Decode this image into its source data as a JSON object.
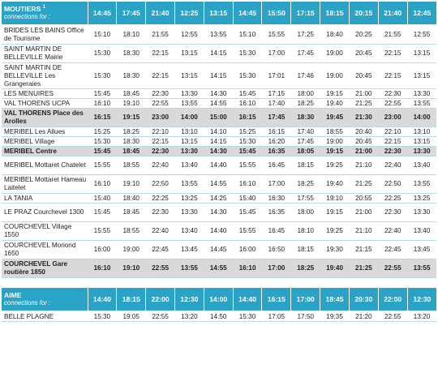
{
  "sections": [
    {
      "origin": "MOUTIERS",
      "origin_note": "1",
      "subtitle": "connections for :",
      "times": [
        "14:45",
        "17:45",
        "21:40",
        "12:25",
        "13:15",
        "14:45",
        "15:50",
        "17:15",
        "18:15",
        "20:15",
        "21:40",
        "12:45"
      ],
      "rows": [
        {
          "stop": "BRIDES LES BAINS Office de Tourisme",
          "h": 2,
          "hl": false,
          "times": [
            "15:10",
            "18:10",
            "21:55",
            "12:55",
            "13:55",
            "15:10",
            "15:55",
            "17:25",
            "18:40",
            "20:25",
            "21:55",
            "12:55"
          ]
        },
        {
          "stop": "SAINT MARTIN DE BELLEVILLE Mairie",
          "h": 2,
          "hl": false,
          "times": [
            "15:30",
            "18:30",
            "22:15",
            "13:15",
            "14:15",
            "15:30",
            "17:00",
            "17:45",
            "19:00",
            "20:45",
            "22:15",
            "13:15"
          ]
        },
        {
          "stop": "SAINT MARTIN DE BELLEVILLE Les Grangeraies",
          "h": 3,
          "hl": false,
          "times": [
            "15:30",
            "18:30",
            "22:15",
            "13:15",
            "14:15",
            "15:30",
            "17:01",
            "17:46",
            "19:00",
            "20:45",
            "22:15",
            "13:15"
          ]
        },
        {
          "stop": "LES MENUIRES",
          "h": 1,
          "hl": false,
          "times": [
            "15:45",
            "18:45",
            "22:30",
            "13:30",
            "14:30",
            "15:45",
            "17:15",
            "18:00",
            "19:15",
            "21:00",
            "22:30",
            "13:30"
          ]
        },
        {
          "stop": "VAL THORENS UCPA",
          "h": 1,
          "hl": false,
          "times": [
            "16:10",
            "19:10",
            "22:55",
            "13:55",
            "14:55",
            "16:10",
            "17:40",
            "18:25",
            "19:40",
            "21:25",
            "22:55",
            "13:55"
          ]
        },
        {
          "stop": "VAL THORENS Place des Arolles",
          "h": 2,
          "hl": true,
          "times": [
            "16:15",
            "19:15",
            "23:00",
            "14:00",
            "15:00",
            "16:15",
            "17:45",
            "18:30",
            "19:45",
            "21:30",
            "23:00",
            "14:00"
          ]
        },
        {
          "stop": "MERIBEL Les Allues",
          "h": 1,
          "hl": false,
          "times": [
            "15:25",
            "18:25",
            "22:10",
            "13:10",
            "14:10",
            "15:25",
            "16:15",
            "17:40",
            "18:55",
            "20:40",
            "22:10",
            "13:10"
          ]
        },
        {
          "stop": "MERIBEL Village",
          "h": 1,
          "hl": false,
          "times": [
            "15:30",
            "18:30",
            "22:15",
            "13:15",
            "14:15",
            "15:30",
            "16:20",
            "17:45",
            "19:00",
            "20:45",
            "22:15",
            "13:15"
          ]
        },
        {
          "stop": "MERIBEL Centre",
          "h": 1,
          "hl": true,
          "times": [
            "15:45",
            "18:45",
            "22:30",
            "13:30",
            "14:30",
            "15:45",
            "16:35",
            "18:05",
            "19:15",
            "21:00",
            "22:30",
            "13:30"
          ]
        },
        {
          "stop": "MERIBEL Mottaret Chatelet",
          "h": 2,
          "hl": false,
          "times": [
            "15:55",
            "18:55",
            "22:40",
            "13:40",
            "14:40",
            "15:55",
            "16:45",
            "18:15",
            "19:25",
            "21:10",
            "22:40",
            "13:40"
          ]
        },
        {
          "stop": "MERIBEL Mottaret Hameau Laitelet",
          "h": 2,
          "hl": false,
          "times": [
            "16:10",
            "19:10",
            "22:50",
            "13:55",
            "14:55",
            "16:10",
            "17:00",
            "18:25",
            "19:40",
            "21:25",
            "22:50",
            "13:55"
          ]
        },
        {
          "stop": "LA TANIA",
          "h": 1,
          "hl": false,
          "times": [
            "15:40",
            "18:40",
            "22:25",
            "13:25",
            "14:25",
            "15:40",
            "16:30",
            "17:55",
            "19:10",
            "20:55",
            "22:25",
            "13:25"
          ]
        },
        {
          "stop": "LE PRAZ Courchevel 1300",
          "h": 2,
          "hl": false,
          "times": [
            "15:45",
            "18:45",
            "22:30",
            "13:30",
            "14:30",
            "15:45",
            "16:35",
            "18:00",
            "19:15",
            "21:00",
            "22:30",
            "13:30"
          ]
        },
        {
          "stop": "COURCHEVEL Village 1550",
          "h": 2,
          "hl": false,
          "times": [
            "15:55",
            "18:55",
            "22:40",
            "13:40",
            "14:40",
            "15:55",
            "16:45",
            "18:10",
            "19:25",
            "21:10",
            "22:40",
            "13:40"
          ]
        },
        {
          "stop": "COURCHEVEL Moriond 1650",
          "h": 2,
          "hl": false,
          "times": [
            "16:00",
            "19:00",
            "22:45",
            "13:45",
            "14:45",
            "16:00",
            "16:50",
            "18:15",
            "19:30",
            "21:15",
            "22:45",
            "13:45"
          ]
        },
        {
          "stop": "COURCHEVEL Gare routière 1850",
          "h": 2,
          "hl": true,
          "times": [
            "16:10",
            "19:10",
            "22:55",
            "13:55",
            "14:55",
            "16:10",
            "17:00",
            "18:25",
            "19:40",
            "21:25",
            "22:55",
            "13:55"
          ]
        }
      ]
    },
    {
      "origin": "AIME",
      "origin_note": "",
      "subtitle": "connections for :",
      "times": [
        "14:40",
        "18:15",
        "22:00",
        "12:30",
        "14:00",
        "14:40",
        "16:15",
        "17:00",
        "18:45",
        "20:30",
        "22:00",
        "12:30"
      ],
      "rows": [
        {
          "stop": "BELLE PLAGNE",
          "h": 1,
          "hl": false,
          "times": [
            "15:30",
            "19:05",
            "22:55",
            "13:20",
            "14:50",
            "15:30",
            "17:05",
            "17:50",
            "19:35",
            "21:20",
            "22:55",
            "13:20"
          ]
        }
      ]
    }
  ]
}
